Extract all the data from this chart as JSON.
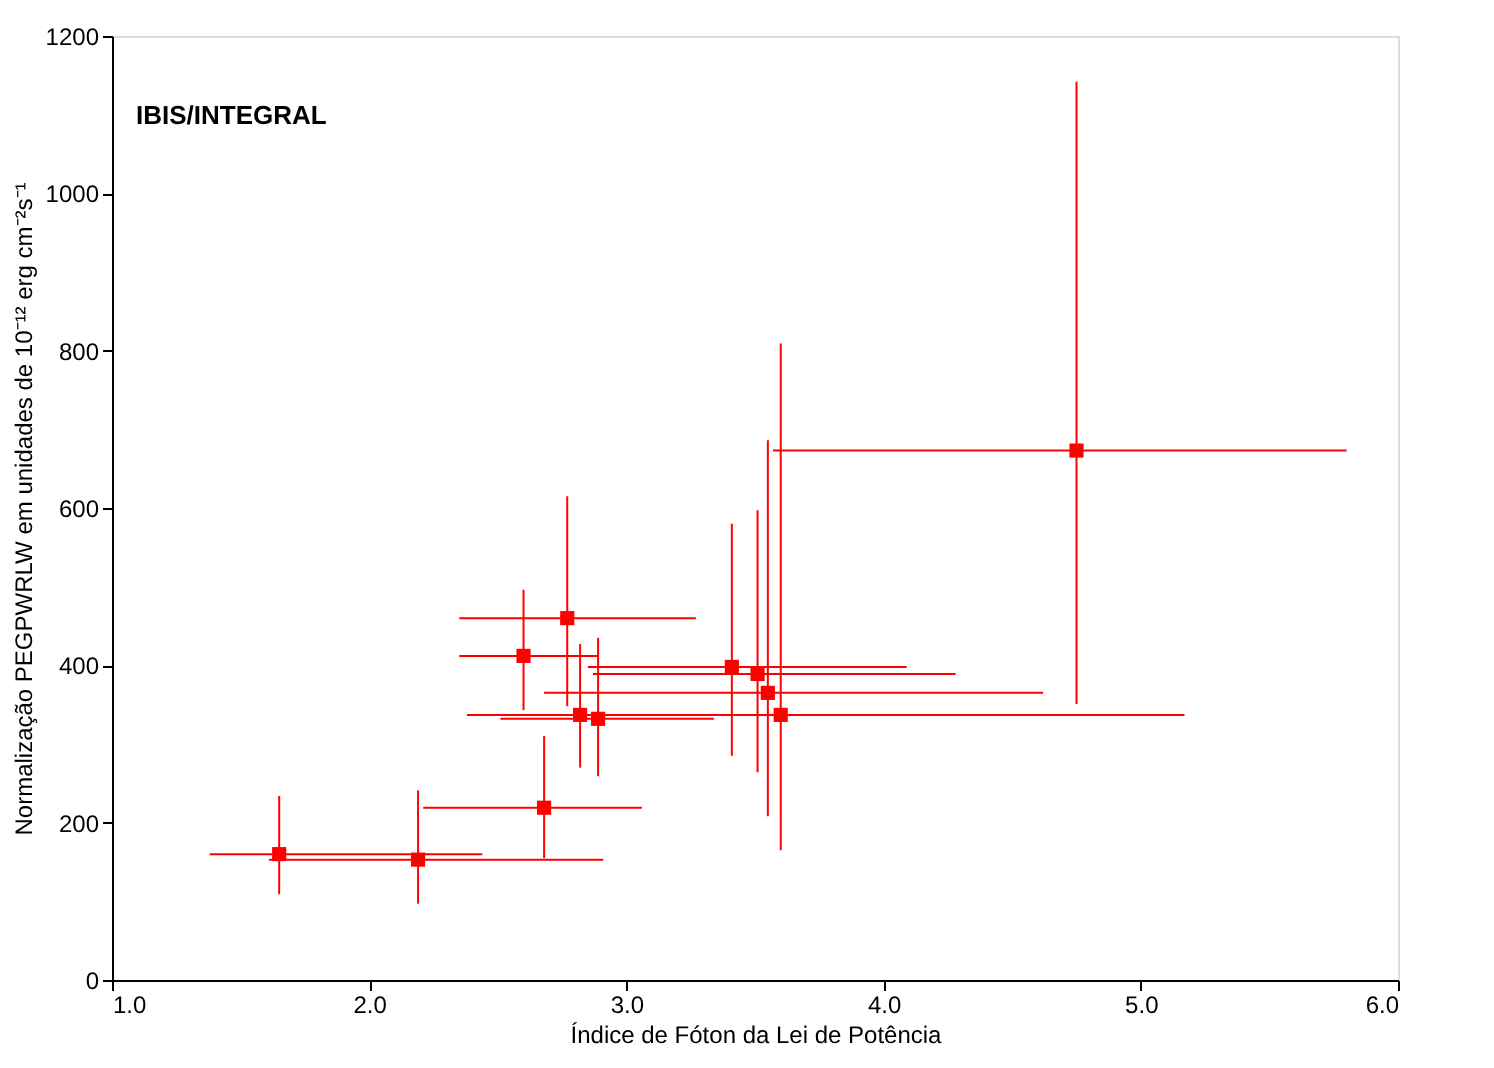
{
  "chart_data": {
    "type": "scatter",
    "xlabel": "Índice de Fóton da Lei de Potência",
    "ylabel": "Normalização PEGPWRLW em unidades de 10⁻¹² erg cm⁻²s⁻¹",
    "annotations": [
      "IBIS/INTEGRAL"
    ],
    "x": [
      1.65,
      2.19,
      2.68,
      2.6,
      2.77,
      2.82,
      2.89,
      3.41,
      3.51,
      3.55,
      3.6,
      4.75
    ],
    "series": [
      {
        "color": "#ff0000",
        "values": [
          160,
          153,
          219,
          412,
          460,
          337,
          332,
          398,
          389,
          365,
          337,
          673
        ],
        "xerrors": [
          [
            1.38,
            2.44
          ],
          [
            1.61,
            2.91
          ],
          [
            2.21,
            3.06
          ],
          [
            2.35,
            2.89
          ],
          [
            2.35,
            3.27
          ],
          [
            2.45,
            3.26
          ],
          [
            2.51,
            3.34
          ],
          [
            2.85,
            4.09
          ],
          [
            2.87,
            4.28
          ],
          [
            2.68,
            4.62
          ],
          [
            2.38,
            5.17
          ],
          [
            3.57,
            5.8
          ]
        ],
        "errors": [
          [
            109,
            234
          ],
          [
            97,
            241
          ],
          [
            155,
            310
          ],
          [
            343,
            496
          ],
          [
            348,
            615
          ],
          [
            270,
            427
          ],
          [
            259,
            435
          ],
          [
            285,
            580
          ],
          [
            264,
            597
          ],
          [
            208,
            686
          ],
          [
            165,
            809
          ],
          [
            351,
            1142
          ]
        ]
      }
    ],
    "marker": "square",
    "xlim": [
      1.0,
      6.0
    ],
    "xticks": [
      {
        "value": 1,
        "label": "1.0"
      },
      {
        "value": 2,
        "label": "2.0"
      },
      {
        "value": 3,
        "label": "3.0"
      },
      {
        "value": 4,
        "label": "4.0"
      },
      {
        "value": 5,
        "label": "5.0"
      },
      {
        "value": 6,
        "label": "6.0"
      }
    ],
    "ylim": [
      0,
      1200
    ],
    "yticks": [
      0,
      200,
      400,
      600,
      800,
      1000,
      1200
    ],
    "grid": false
  }
}
